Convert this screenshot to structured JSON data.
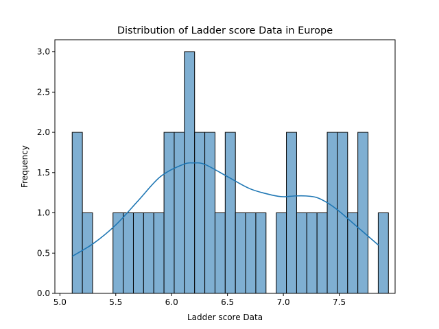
{
  "chart_data": {
    "type": "bar",
    "title": "Distribution of Ladder score Data in Europe",
    "xlabel": "Ladder score Data",
    "ylabel": "Frequency",
    "xlim": [
      4.955,
      8.0
    ],
    "ylim": [
      0,
      3.15
    ],
    "x_ticks": [
      5.0,
      5.5,
      6.0,
      6.5,
      7.0,
      7.5
    ],
    "x_tick_labels": [
      "5.0",
      "5.5",
      "6.0",
      "6.5",
      "7.0",
      "7.5"
    ],
    "y_ticks": [
      0,
      0.5,
      1.0,
      1.5,
      2.0,
      2.5,
      3.0
    ],
    "y_tick_labels": [
      "0.0",
      "0.5",
      "1.0",
      "1.5",
      "2.0",
      "2.5",
      "3.0"
    ],
    "bin_start": 5.11,
    "bin_width": 0.0913,
    "values": [
      2,
      1,
      0,
      0,
      1,
      1,
      1,
      1,
      1,
      2,
      2,
      3,
      2,
      2,
      1,
      2,
      1,
      1,
      1,
      0,
      1,
      2,
      1,
      1,
      1,
      2,
      2,
      1,
      2,
      0,
      1
    ],
    "kde": {
      "name": "KDE",
      "x": [
        5.11,
        5.3,
        5.5,
        5.7,
        5.9,
        6.1,
        6.2,
        6.3,
        6.5,
        6.7,
        6.9,
        7.0,
        7.1,
        7.2,
        7.3,
        7.4,
        7.5,
        7.6,
        7.7,
        7.85
      ],
      "y": [
        0.46,
        0.62,
        0.85,
        1.15,
        1.45,
        1.6,
        1.62,
        1.6,
        1.45,
        1.3,
        1.22,
        1.2,
        1.21,
        1.21,
        1.19,
        1.12,
        1.02,
        0.9,
        0.78,
        0.6
      ]
    },
    "colors": {
      "bar_fill": "#7fafd2",
      "bar_edge": "#000000",
      "kde_line": "#1f77b4"
    },
    "grid": false
  }
}
